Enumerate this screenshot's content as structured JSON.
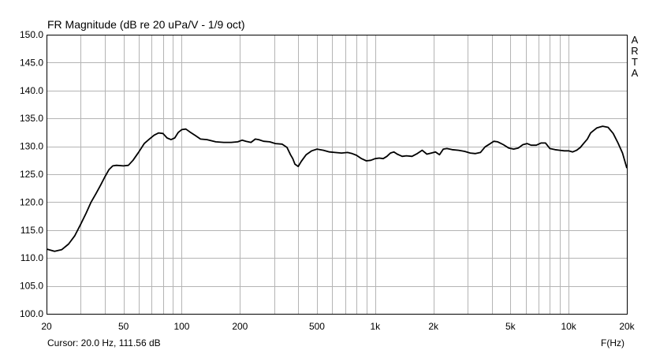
{
  "title": "FR Magnitude (dB re 20 uPa/V - 1/9 oct)",
  "cursor_text": "Cursor: 20.0 Hz, 111.56 dB",
  "x_unit_label": "F(Hz)",
  "brand_letters": [
    "A",
    "R",
    "T",
    "A"
  ],
  "colors": {
    "grid": "#b4b4b4",
    "frame": "#000000",
    "curve": "#000000",
    "background": "#ffffff"
  },
  "chart_data": {
    "type": "line",
    "title": "FR Magnitude (dB re 20 uPa/V - 1/9 oct)",
    "xlabel": "F(Hz)",
    "ylabel": "",
    "x_scale": "log",
    "xlim": [
      20,
      20000
    ],
    "ylim": [
      100,
      150
    ],
    "grid": true,
    "x_ticks": [
      20,
      50,
      100,
      200,
      500,
      1000,
      2000,
      5000,
      10000,
      20000
    ],
    "x_tick_labels": [
      "20",
      "50",
      "100",
      "200",
      "500",
      "1k",
      "2k",
      "5k",
      "10k",
      "20k"
    ],
    "y_ticks": [
      100,
      105,
      110,
      115,
      120,
      125,
      130,
      135,
      140,
      145,
      150
    ],
    "y_tick_labels": [
      "100.0",
      "105.0",
      "110.0",
      "115.0",
      "120.0",
      "125.0",
      "130.0",
      "135.0",
      "140.0",
      "145.0",
      "150.0"
    ],
    "series": [
      {
        "points": [
          [
            20,
            111.6
          ],
          [
            22,
            111.2
          ],
          [
            24,
            111.5
          ],
          [
            26,
            112.5
          ],
          [
            28,
            114
          ],
          [
            30,
            116
          ],
          [
            32,
            118
          ],
          [
            34,
            120
          ],
          [
            36,
            121.5
          ],
          [
            38,
            123
          ],
          [
            40,
            124.5
          ],
          [
            42,
            125.8
          ],
          [
            44,
            126.5
          ],
          [
            46,
            126.6
          ],
          [
            50,
            126.5
          ],
          [
            53,
            126.6
          ],
          [
            56,
            127.5
          ],
          [
            60,
            129
          ],
          [
            64,
            130.5
          ],
          [
            68,
            131.3
          ],
          [
            72,
            132
          ],
          [
            76,
            132.4
          ],
          [
            80,
            132.3
          ],
          [
            84,
            131.5
          ],
          [
            88,
            131.2
          ],
          [
            92,
            131.5
          ],
          [
            96,
            132.5
          ],
          [
            100,
            133
          ],
          [
            105,
            133.1
          ],
          [
            110,
            132.6
          ],
          [
            118,
            131.9
          ],
          [
            125,
            131.3
          ],
          [
            135,
            131.2
          ],
          [
            150,
            130.8
          ],
          [
            165,
            130.7
          ],
          [
            180,
            130.7
          ],
          [
            195,
            130.8
          ],
          [
            205,
            131.1
          ],
          [
            215,
            130.9
          ],
          [
            228,
            130.7
          ],
          [
            240,
            131.3
          ],
          [
            250,
            131.2
          ],
          [
            265,
            130.9
          ],
          [
            285,
            130.8
          ],
          [
            305,
            130.5
          ],
          [
            330,
            130.4
          ],
          [
            350,
            129.8
          ],
          [
            365,
            128.5
          ],
          [
            375,
            127.8
          ],
          [
            385,
            126.8
          ],
          [
            400,
            126.4
          ],
          [
            415,
            127.3
          ],
          [
            440,
            128.5
          ],
          [
            470,
            129.2
          ],
          [
            500,
            129.5
          ],
          [
            540,
            129.3
          ],
          [
            580,
            129
          ],
          [
            620,
            128.9
          ],
          [
            670,
            128.8
          ],
          [
            720,
            128.9
          ],
          [
            760,
            128.7
          ],
          [
            800,
            128.4
          ],
          [
            850,
            127.8
          ],
          [
            900,
            127.4
          ],
          [
            950,
            127.5
          ],
          [
            1000,
            127.8
          ],
          [
            1050,
            127.9
          ],
          [
            1100,
            127.8
          ],
          [
            1150,
            128.2
          ],
          [
            1200,
            128.8
          ],
          [
            1250,
            129
          ],
          [
            1300,
            128.6
          ],
          [
            1380,
            128.2
          ],
          [
            1450,
            128.3
          ],
          [
            1550,
            128.2
          ],
          [
            1650,
            128.7
          ],
          [
            1750,
            129.3
          ],
          [
            1850,
            128.6
          ],
          [
            1950,
            128.8
          ],
          [
            2050,
            129
          ],
          [
            2150,
            128.5
          ],
          [
            2250,
            129.5
          ],
          [
            2350,
            129.6
          ],
          [
            2500,
            129.4
          ],
          [
            2700,
            129.3
          ],
          [
            2900,
            129.1
          ],
          [
            3100,
            128.8
          ],
          [
            3300,
            128.7
          ],
          [
            3500,
            128.9
          ],
          [
            3700,
            129.9
          ],
          [
            3900,
            130.4
          ],
          [
            4100,
            130.9
          ],
          [
            4300,
            130.8
          ],
          [
            4600,
            130.3
          ],
          [
            4900,
            129.7
          ],
          [
            5200,
            129.5
          ],
          [
            5500,
            129.7
          ],
          [
            5800,
            130.3
          ],
          [
            6100,
            130.5
          ],
          [
            6400,
            130.2
          ],
          [
            6800,
            130.2
          ],
          [
            7200,
            130.6
          ],
          [
            7600,
            130.6
          ],
          [
            8000,
            129.6
          ],
          [
            8500,
            129.4
          ],
          [
            9000,
            129.3
          ],
          [
            9500,
            129.2
          ],
          [
            10000,
            129.2
          ],
          [
            10500,
            129
          ],
          [
            11000,
            129.3
          ],
          [
            11500,
            129.8
          ],
          [
            12000,
            130.6
          ],
          [
            12500,
            131.3
          ],
          [
            13000,
            132.4
          ],
          [
            14000,
            133.3
          ],
          [
            15000,
            133.6
          ],
          [
            16000,
            133.4
          ],
          [
            17000,
            132.3
          ],
          [
            18000,
            130.6
          ],
          [
            19000,
            128.8
          ],
          [
            20000,
            126.1
          ]
        ]
      }
    ]
  }
}
